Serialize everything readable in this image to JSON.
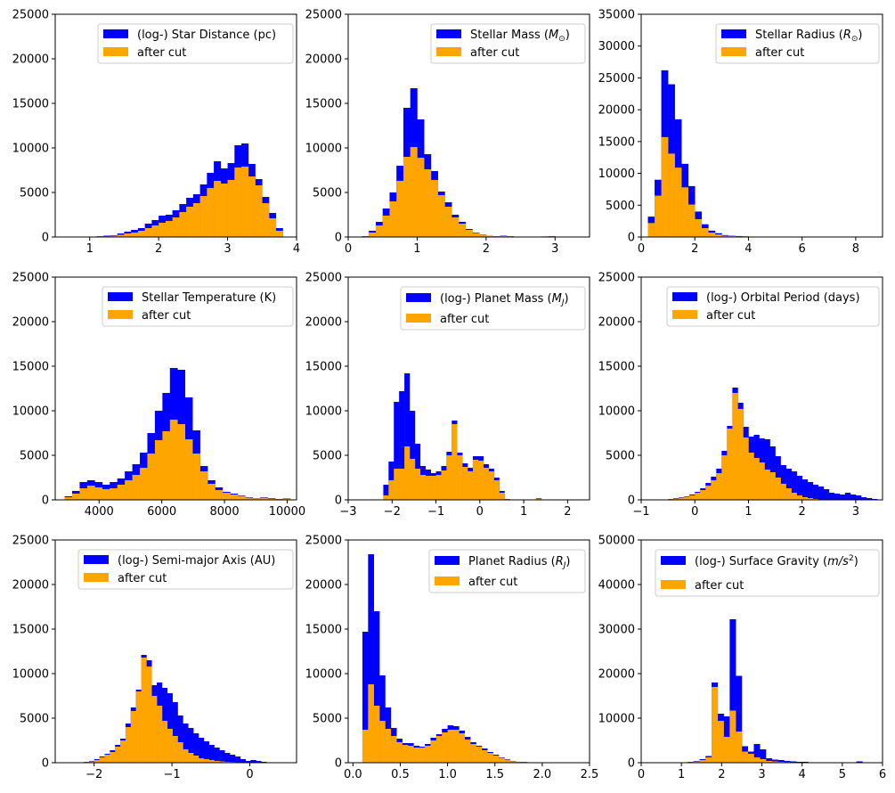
{
  "colors": {
    "all": "#0000ff",
    "cut": "#ffa500",
    "axis": "#000000",
    "legend_border": "#cccccc"
  },
  "chart_data": [
    {
      "type": "bar",
      "id": "star-distance",
      "legend": [
        "(log-) Star Distance (pc)",
        "after cut"
      ],
      "xlim": [
        0.5,
        4.0
      ],
      "ylim": [
        0,
        25000
      ],
      "xticks": [
        1,
        2,
        3,
        4
      ],
      "xtick_labels": [
        "1",
        "2",
        "3",
        "4"
      ],
      "yticks": [
        0,
        5000,
        10000,
        15000,
        20000,
        25000
      ],
      "ytick_labels": [
        "0",
        "5000",
        "10000",
        "15000",
        "20000",
        "25000"
      ],
      "bin_start": 0.9,
      "bin_width": 0.1,
      "values_all": [
        50,
        0,
        80,
        150,
        200,
        400,
        600,
        800,
        1000,
        1500,
        1900,
        2400,
        2500,
        3000,
        3700,
        4400,
        4800,
        5900,
        7200,
        8500,
        7700,
        8300,
        10300,
        10500,
        8200,
        6500,
        4500,
        2700,
        1000,
        0
      ],
      "values_cut": [
        20,
        0,
        50,
        80,
        150,
        250,
        400,
        500,
        700,
        1000,
        1300,
        1600,
        1800,
        2200,
        2800,
        3400,
        3800,
        4600,
        5500,
        6300,
        6000,
        6400,
        7800,
        7900,
        6800,
        5800,
        3800,
        2100,
        700,
        0
      ]
    },
    {
      "type": "bar",
      "id": "stellar-mass",
      "legend": [
        "Stellar Mass ($M_{\\odot}$)",
        "after cut"
      ],
      "legend_parts": [
        [
          "Stellar Mass (",
          "M",
          "⊙",
          ")"
        ]
      ],
      "xlim": [
        0.0,
        3.5
      ],
      "ylim": [
        0,
        25000
      ],
      "xticks": [
        0,
        1,
        2,
        3
      ],
      "xtick_labels": [
        "0",
        "1",
        "2",
        "3"
      ],
      "yticks": [
        0,
        5000,
        10000,
        15000,
        20000,
        25000
      ],
      "ytick_labels": [
        "0",
        "5000",
        "10000",
        "15000",
        "20000",
        "25000"
      ],
      "bin_start": 0.2,
      "bin_width": 0.1,
      "values_all": [
        100,
        700,
        1700,
        3200,
        5000,
        8000,
        14500,
        16700,
        13200,
        9300,
        7400,
        5100,
        3900,
        2500,
        1700,
        900,
        500,
        300,
        150,
        100,
        150,
        80,
        50,
        40,
        30,
        40,
        60,
        100,
        40,
        20,
        0
      ],
      "values_cut": [
        80,
        500,
        1300,
        2400,
        4000,
        6300,
        9000,
        10100,
        8900,
        7600,
        6400,
        4700,
        3400,
        2200,
        1500,
        800,
        450,
        280,
        140,
        90,
        110,
        70,
        40,
        30,
        30,
        40,
        50,
        80,
        30,
        15,
        0
      ]
    },
    {
      "type": "bar",
      "id": "stellar-radius",
      "legend": [
        "Stellar Radius ($R_{\\odot}$)",
        "after cut"
      ],
      "xlim": [
        0.0,
        9.0
      ],
      "ylim": [
        0,
        35000
      ],
      "xticks": [
        0,
        2,
        4,
        6,
        8
      ],
      "xtick_labels": [
        "0",
        "2",
        "4",
        "6",
        "8"
      ],
      "yticks": [
        0,
        5000,
        10000,
        15000,
        20000,
        25000,
        30000,
        35000
      ],
      "ytick_labels": [
        "0",
        "5000",
        "10000",
        "15000",
        "20000",
        "25000",
        "30000",
        "35000"
      ],
      "bin_start": 0.25,
      "bin_width": 0.25,
      "values_all": [
        3200,
        9000,
        26200,
        24000,
        18500,
        11500,
        8000,
        4000,
        2000,
        1000,
        600,
        300,
        200,
        150,
        100,
        70,
        50,
        40,
        60,
        30,
        20,
        10
      ],
      "values_cut": [
        2200,
        6500,
        15700,
        13100,
        10900,
        7800,
        5100,
        2800,
        1400,
        700,
        400,
        200,
        150,
        100,
        70,
        50,
        30,
        30,
        40,
        20,
        15,
        5
      ]
    },
    {
      "type": "bar",
      "id": "stellar-temperature",
      "legend": [
        "Stellar Temperature (K)",
        "after cut"
      ],
      "xlim": [
        2600,
        10300
      ],
      "ylim": [
        0,
        25000
      ],
      "xticks": [
        4000,
        6000,
        8000,
        10000
      ],
      "xtick_labels": [
        "4000",
        "6000",
        "8000",
        "10000"
      ],
      "yticks": [
        0,
        5000,
        10000,
        15000,
        20000,
        25000
      ],
      "ytick_labels": [
        "0",
        "5000",
        "10000",
        "15000",
        "20000",
        "25000"
      ],
      "bin_start": 2900,
      "bin_width": 240,
      "values_all": [
        400,
        1000,
        2000,
        2200,
        2000,
        1700,
        2000,
        2400,
        3200,
        4000,
        5300,
        7500,
        10000,
        12000,
        14800,
        14600,
        11500,
        7800,
        3800,
        2200,
        1400,
        900,
        700,
        500,
        300,
        200,
        300,
        200,
        100,
        150,
        50,
        0
      ],
      "values_cut": [
        300,
        700,
        1300,
        1600,
        1400,
        1200,
        1300,
        1700,
        2200,
        2800,
        3600,
        5200,
        6700,
        7700,
        9000,
        8500,
        6800,
        5200,
        3200,
        1800,
        1100,
        800,
        600,
        450,
        250,
        180,
        250,
        150,
        80,
        100,
        40,
        0
      ]
    },
    {
      "type": "bar",
      "id": "planet-mass",
      "legend": [
        "(log-) Planet Mass ($M_J$)",
        "after cut"
      ],
      "xlim": [
        -3.0,
        2.5
      ],
      "ylim": [
        0,
        25000
      ],
      "xticks": [
        -3,
        -2,
        -1,
        0,
        1,
        2
      ],
      "xtick_labels": [
        "−3",
        "−2",
        "−1",
        "0",
        "1",
        "2"
      ],
      "yticks": [
        0,
        5000,
        10000,
        15000,
        20000,
        25000
      ],
      "ytick_labels": [
        "0",
        "5000",
        "10000",
        "15000",
        "20000",
        "25000"
      ],
      "bin_start": -2.2,
      "bin_width": 0.12,
      "values_all": [
        1700,
        4300,
        11000,
        12200,
        14200,
        10000,
        6300,
        3800,
        3400,
        3000,
        3200,
        3800,
        5400,
        8900,
        5300,
        4100,
        3600,
        4900,
        4900,
        4000,
        3500,
        2500,
        1000,
        100,
        50,
        30,
        20,
        10,
        20,
        200
      ],
      "values_cut": [
        500,
        2200,
        3500,
        3500,
        6000,
        4600,
        3500,
        2800,
        2700,
        2700,
        2800,
        3300,
        5000,
        8500,
        5000,
        3700,
        3200,
        4500,
        4400,
        3600,
        3200,
        2200,
        800,
        80,
        40,
        20,
        10,
        5,
        10,
        150
      ]
    },
    {
      "type": "bar",
      "id": "orbital-period",
      "legend": [
        "(log-) Orbital Period (days)",
        "after cut"
      ],
      "xlim": [
        -1.0,
        3.5
      ],
      "ylim": [
        0,
        25000
      ],
      "xticks": [
        -1,
        0,
        1,
        2,
        3
      ],
      "xtick_labels": [
        "−1",
        "0",
        "1",
        "2",
        "3"
      ],
      "yticks": [
        0,
        5000,
        10000,
        15000,
        20000,
        25000
      ],
      "ytick_labels": [
        "0",
        "5000",
        "10000",
        "15000",
        "20000",
        "25000"
      ],
      "bin_start": -0.6,
      "bin_width": 0.1,
      "values_all": [
        50,
        100,
        200,
        300,
        400,
        600,
        900,
        1300,
        1900,
        2600,
        3500,
        5500,
        8300,
        12600,
        10900,
        8200,
        7100,
        7300,
        6900,
        6800,
        6000,
        4900,
        3900,
        3500,
        3200,
        2700,
        2300,
        2000,
        1700,
        1500,
        1200,
        800,
        700,
        600,
        800,
        600,
        500,
        300,
        200,
        100
      ],
      "values_cut": [
        30,
        80,
        150,
        250,
        350,
        500,
        800,
        1100,
        1600,
        2200,
        3000,
        5000,
        8000,
        12000,
        10200,
        7000,
        5300,
        4700,
        4200,
        3400,
        3100,
        2500,
        1800,
        1300,
        800,
        500,
        300,
        200,
        100,
        50,
        40,
        30,
        20,
        20,
        30,
        20,
        15,
        10,
        5,
        0
      ]
    },
    {
      "type": "bar",
      "id": "semi-major-axis",
      "legend": [
        "(log-) Semi-major Axis (AU)",
        "after cut"
      ],
      "xlim": [
        -2.5,
        0.6
      ],
      "ylim": [
        0,
        25000
      ],
      "xticks": [
        -2,
        -1,
        0
      ],
      "xtick_labels": [
        "−2",
        "−1",
        "0"
      ],
      "yticks": [
        0,
        5000,
        10000,
        15000,
        20000,
        25000
      ],
      "ytick_labels": [
        "0",
        "5000",
        "10000",
        "15000",
        "20000",
        "25000"
      ],
      "bin_start": -2.2,
      "bin_width": 0.067,
      "values_all": [
        50,
        100,
        200,
        400,
        700,
        1000,
        1400,
        2000,
        2700,
        4400,
        6200,
        8200,
        12100,
        11500,
        8700,
        9000,
        8400,
        7800,
        6800,
        5300,
        4400,
        3900,
        3300,
        2800,
        2400,
        2000,
        1700,
        1400,
        1100,
        900,
        700,
        400,
        200,
        300,
        200,
        100
      ],
      "values_cut": [
        40,
        80,
        150,
        300,
        600,
        900,
        1200,
        1800,
        2500,
        4000,
        5800,
        8000,
        11800,
        10800,
        7500,
        6400,
        4700,
        3800,
        3000,
        2300,
        1500,
        1100,
        800,
        500,
        400,
        300,
        200,
        150,
        100,
        80,
        60,
        40,
        20,
        30,
        20,
        10
      ]
    },
    {
      "type": "bar",
      "id": "planet-radius",
      "legend": [
        "Planet Radius ($R_J$)",
        "after cut"
      ],
      "xlim": [
        -0.05,
        2.5
      ],
      "ylim": [
        0,
        25000
      ],
      "xticks": [
        0.0,
        0.5,
        1.0,
        1.5,
        2.0,
        2.5
      ],
      "xtick_labels": [
        "0.0",
        "0.5",
        "1.0",
        "1.5",
        "2.0",
        "2.5"
      ],
      "yticks": [
        0,
        5000,
        10000,
        15000,
        20000,
        25000
      ],
      "ytick_labels": [
        "0",
        "5000",
        "10000",
        "15000",
        "20000",
        "25000"
      ],
      "bin_start": 0.1,
      "bin_width": 0.06,
      "values_all": [
        14700,
        23400,
        17000,
        9800,
        6200,
        3900,
        2700,
        2200,
        2200,
        1900,
        1800,
        2100,
        2800,
        3200,
        3800,
        4200,
        4100,
        3600,
        2900,
        2300,
        1900,
        1600,
        1200,
        900,
        600,
        400,
        200,
        100,
        80,
        50,
        0
      ],
      "values_cut": [
        3700,
        8800,
        6400,
        4700,
        3800,
        3000,
        2300,
        2000,
        1900,
        1700,
        1700,
        1900,
        2500,
        3000,
        3400,
        3700,
        3700,
        3300,
        2600,
        2100,
        1800,
        1400,
        1100,
        800,
        550,
        350,
        180,
        90,
        60,
        40,
        0
      ]
    },
    {
      "type": "bar",
      "id": "surface-gravity",
      "legend": [
        "(log-) Surface Gravity ($m/s^2$)",
        "after cut"
      ],
      "xlim": [
        0.0,
        6.0
      ],
      "ylim": [
        0,
        50000
      ],
      "xticks": [
        0,
        1,
        2,
        3,
        4,
        5,
        6
      ],
      "xtick_labels": [
        "0",
        "1",
        "2",
        "3",
        "4",
        "5",
        "6"
      ],
      "yticks": [
        0,
        10000,
        20000,
        30000,
        40000,
        50000
      ],
      "ytick_labels": [
        "0",
        "10000",
        "20000",
        "30000",
        "40000",
        "50000"
      ],
      "bin_start": 1.0,
      "bin_width": 0.15,
      "values_all": [
        0,
        200,
        400,
        800,
        1500,
        18000,
        11000,
        10400,
        32200,
        19500,
        3700,
        2500,
        4200,
        3000,
        1000,
        700,
        600,
        400,
        300,
        200,
        200,
        100,
        100,
        100,
        80,
        50,
        30,
        20,
        20,
        300,
        0
      ],
      "values_cut": [
        0,
        150,
        300,
        600,
        1200,
        17000,
        9400,
        5800,
        11700,
        7000,
        2500,
        2000,
        1200,
        800,
        400,
        300,
        200,
        150,
        100,
        80,
        60,
        40,
        30,
        30,
        20,
        15,
        10,
        5,
        5,
        50,
        0
      ]
    }
  ]
}
